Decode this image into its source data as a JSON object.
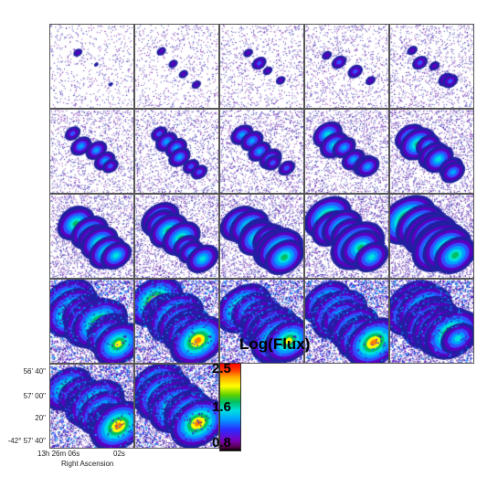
{
  "figure": {
    "panel_count": 22,
    "grid_columns": 5
  },
  "axes": {
    "y_ticks": [
      "56' 40\"",
      "57' 00\"",
      "20\"",
      "-42° 57' 40\""
    ],
    "x_ticks": [
      "13h 26m 06s",
      "02s"
    ],
    "x_title": "Right Ascension"
  },
  "colorbar": {
    "title": "Log(Flux)",
    "max_label": "2.5",
    "mid_label": "1.6",
    "min_label": "0.8",
    "colors": [
      "#000000",
      "#7a00c0",
      "#2a2aff",
      "#00a0ff",
      "#00e0e0",
      "#00c060",
      "#ffff00",
      "#ff4000",
      "#ff0000"
    ]
  }
}
